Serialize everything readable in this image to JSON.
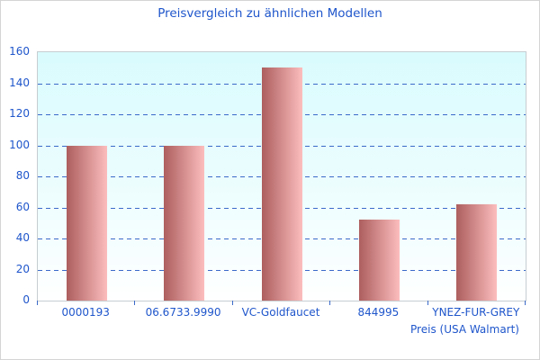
{
  "colors": {
    "text_blue": "#1f56cb",
    "grid_blue": "#3b6ac9",
    "bar_dark": "#ad5e5e",
    "bar_light": "#fcbdbd",
    "plot_bg_top": "#d9fbfd",
    "plot_bg_mid": "#f4feff",
    "plot_bg_bottom": "#ffffff",
    "plot_border": "#c6cdd1"
  },
  "chart_data": {
    "type": "bar",
    "title": "Preisvergleich zu ähnlichen Modellen",
    "categories": [
      "0000193",
      "06.6733.9990",
      "VC-Goldfaucet",
      "844995",
      "YNEZ-FUR-GREY"
    ],
    "values": [
      100,
      100,
      150,
      52,
      62
    ],
    "xlabel": "Preis (USA Walmart)",
    "ylabel": "",
    "ylim": [
      0,
      160
    ],
    "ytick_step": 20,
    "grid": "horizontal-dashed",
    "legend": "none"
  }
}
